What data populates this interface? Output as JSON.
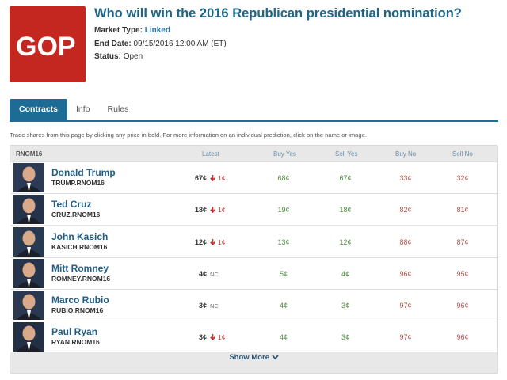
{
  "market": {
    "logo_text": "GOP",
    "title": "Who will win the 2016 Republican presidential nomination?",
    "market_type_label": "Market Type:",
    "market_type_value": "Linked",
    "end_date_label": "End Date:",
    "end_date_value": "09/15/2016 12:00 AM (ET)",
    "status_label": "Status:",
    "status_value": "Open"
  },
  "tabs": [
    {
      "label": "Contracts",
      "active": true
    },
    {
      "label": "Info",
      "active": false
    },
    {
      "label": "Rules",
      "active": false
    }
  ],
  "instructions": "Trade shares from this page by clicking any price in bold. For more information on an individual prediction, click on the name or image.",
  "table": {
    "market_code": "RNOM16",
    "headers": {
      "latest": "Latest",
      "buy_yes": "Buy Yes",
      "sell_yes": "Sell Yes",
      "buy_no": "Buy No",
      "sell_no": "Sell No"
    },
    "rows": [
      {
        "name": "Donald Trump",
        "ticker": "TRUMP.RNOM16",
        "latest": "67¢",
        "change": "1¢",
        "change_dir": "down",
        "buy_yes": "68¢",
        "sell_yes": "67¢",
        "buy_no": "33¢",
        "sell_no": "32¢"
      },
      {
        "name": "Ted Cruz",
        "ticker": "CRUZ.RNOM16",
        "latest": "18¢",
        "change": "1¢",
        "change_dir": "down",
        "buy_yes": "19¢",
        "sell_yes": "18¢",
        "buy_no": "82¢",
        "sell_no": "81¢"
      },
      {
        "name": "John Kasich",
        "ticker": "KASICH.RNOM16",
        "latest": "12¢",
        "change": "1¢",
        "change_dir": "down",
        "buy_yes": "13¢",
        "sell_yes": "12¢",
        "buy_no": "88¢",
        "sell_no": "87¢"
      },
      {
        "name": "Mitt Romney",
        "ticker": "ROMNEY.RNOM16",
        "latest": "4¢",
        "change": "NC",
        "change_dir": "none",
        "buy_yes": "5¢",
        "sell_yes": "4¢",
        "buy_no": "96¢",
        "sell_no": "95¢"
      },
      {
        "name": "Marco Rubio",
        "ticker": "RUBIO.RNOM16",
        "latest": "3¢",
        "change": "NC",
        "change_dir": "none",
        "buy_yes": "4¢",
        "sell_yes": "3¢",
        "buy_no": "97¢",
        "sell_no": "96¢"
      },
      {
        "name": "Paul Ryan",
        "ticker": "RYAN.RNOM16",
        "latest": "3¢",
        "change": "1¢",
        "change_dir": "down",
        "buy_yes": "4¢",
        "sell_yes": "3¢",
        "buy_no": "97¢",
        "sell_no": "96¢"
      }
    ],
    "show_more": "Show More"
  },
  "colors": {
    "accent": "#1d6c95",
    "logo_bg": "#c4271f",
    "yes": "#4d8a3c",
    "no": "#b0524c",
    "down": "#c9302c"
  },
  "icons": {
    "change_down": "down-arrow-icon",
    "show_more": "chevron-down-icon"
  }
}
